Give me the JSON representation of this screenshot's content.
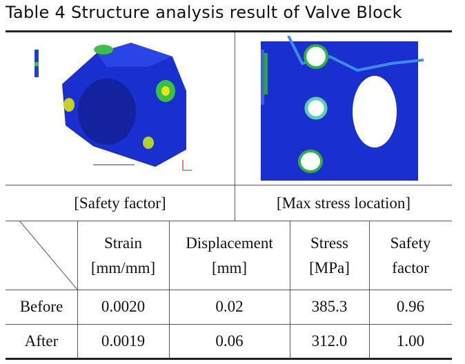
{
  "title": "Table 4 Structure analysis result of Valve Block",
  "figures": [
    {
      "caption": "[Safety factor]"
    },
    {
      "caption": "[Max stress location]"
    }
  ],
  "table": {
    "header": [
      [
        "Strain",
        "[mm/mm]"
      ],
      [
        "Displacement",
        "[mm]"
      ],
      [
        "Stress",
        "[MPa]"
      ],
      [
        "Safety",
        "factor"
      ]
    ],
    "rows": [
      [
        "Before",
        "0.0020",
        "0.02",
        "385.3",
        "0.96"
      ],
      [
        "After",
        "0.0019",
        "0.06",
        "312.0",
        "1.00"
      ]
    ]
  }
}
